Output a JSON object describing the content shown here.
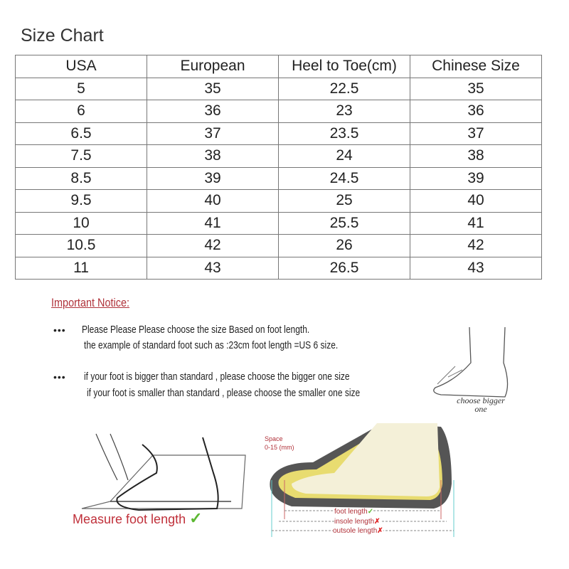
{
  "title": "Size Chart",
  "table": {
    "headers": [
      "USA",
      "European",
      "Heel to Toe(cm)",
      "Chinese Size"
    ],
    "rows": [
      [
        "5",
        "35",
        "22.5",
        "35"
      ],
      [
        "6",
        "36",
        "23",
        "36"
      ],
      [
        "6.5",
        "37",
        "23.5",
        "37"
      ],
      [
        "7.5",
        "38",
        "24",
        "38"
      ],
      [
        "8.5",
        "39",
        "24.5",
        "39"
      ],
      [
        "9.5",
        "40",
        "25",
        "40"
      ],
      [
        "10",
        "41",
        "25.5",
        "41"
      ],
      [
        "10.5",
        "42",
        "26",
        "42"
      ],
      [
        "11",
        "43",
        "26.5",
        "43"
      ]
    ]
  },
  "notice": {
    "heading": "Important Notice:",
    "bullet": "•••",
    "lines": [
      "Please Please Please choose the size Based on foot length.",
      "the example of standard foot such as :23cm foot length =US 6 size.",
      "if your foot is bigger than standard , please choose the bigger one size",
      "if your foot is smaller than standard , please choose the smaller one size"
    ],
    "choose_label": "choose bigger one"
  },
  "diagram": {
    "measure_label": "Measure foot length",
    "space_label": "Space",
    "space_range": "0-15 (mm)",
    "foot_length": "foot length",
    "insole_length": "insole length",
    "outsole_length": "outsole length",
    "colors": {
      "label_red": "#c0303a",
      "check_green": "#5cb832",
      "cross_red": "#e02020",
      "sole_gray": "#555555",
      "insole_yellow": "#e8dc70",
      "foot_cream": "#f4f0d8"
    }
  }
}
